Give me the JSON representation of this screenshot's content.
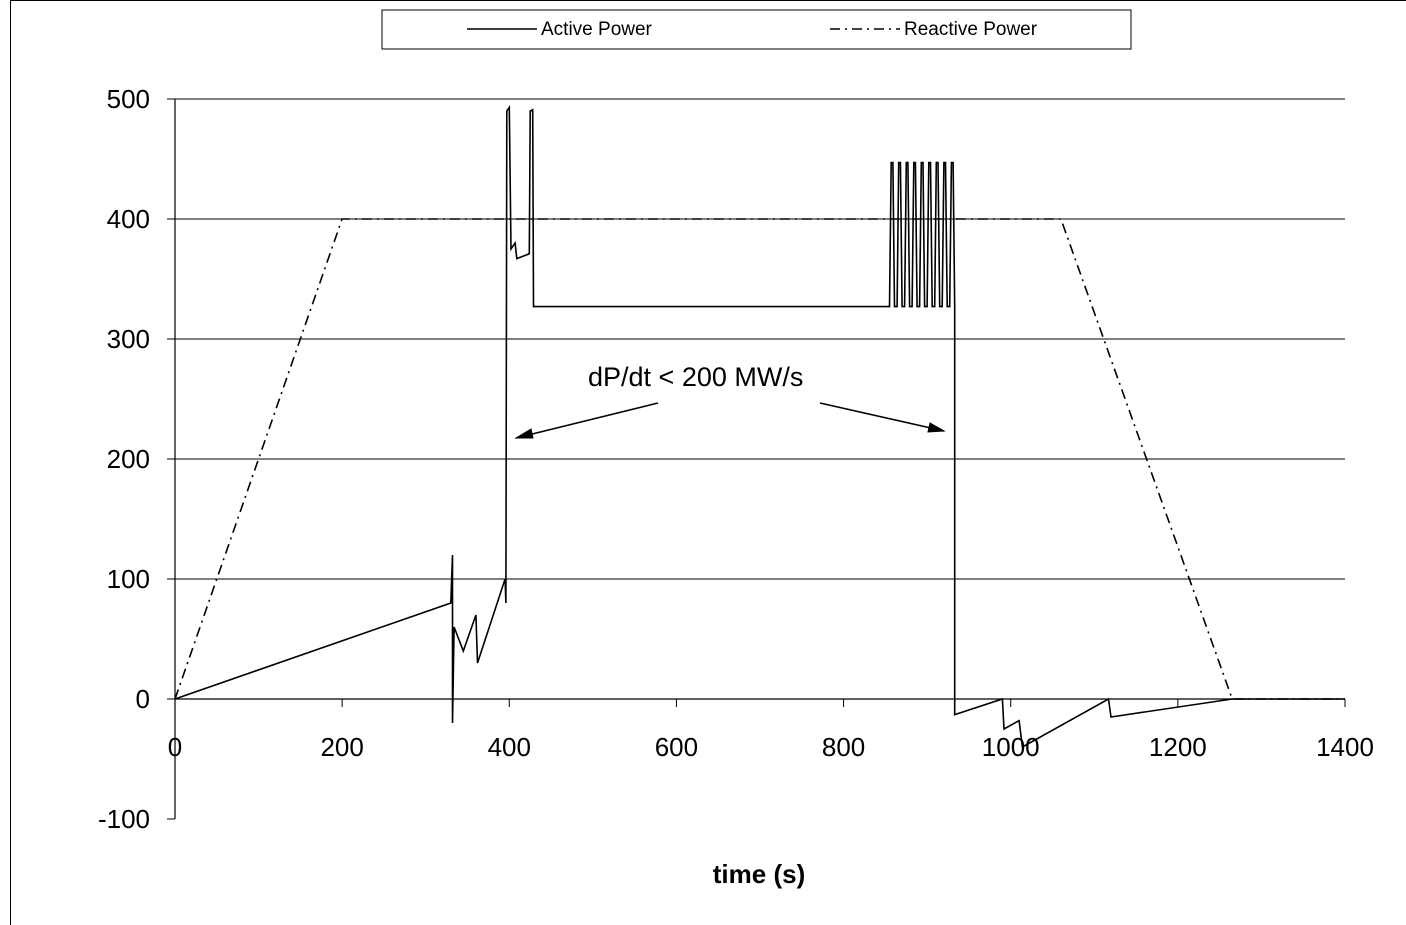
{
  "chart_data": {
    "type": "line",
    "title": "",
    "xlabel": "time (s)",
    "ylabel": "",
    "xlim": [
      0,
      1400
    ],
    "ylim": [
      -100,
      500
    ],
    "x_ticks": [
      "0",
      "200",
      "400",
      "600",
      "800",
      "1000",
      "1200",
      "1400"
    ],
    "y_ticks": [
      "500",
      "400",
      "300",
      "200",
      "100",
      "0",
      "-100"
    ],
    "grid": "horizontal",
    "legend_position": "top",
    "annotation": "dP/dt < 200 MW/s",
    "series": [
      {
        "name": "Active Power",
        "style": "solid",
        "color": "#000000",
        "points": [
          [
            0,
            0
          ],
          [
            330,
            80
          ],
          [
            332,
            120
          ],
          [
            332,
            -20
          ],
          [
            334,
            60
          ],
          [
            345,
            40
          ],
          [
            360,
            70
          ],
          [
            362,
            30
          ],
          [
            395,
            100
          ],
          [
            396,
            80
          ],
          [
            397,
            490
          ],
          [
            400,
            493
          ],
          [
            402,
            375
          ],
          [
            407,
            380
          ],
          [
            409,
            367
          ],
          [
            424,
            371
          ],
          [
            425,
            490
          ],
          [
            428,
            491
          ],
          [
            429,
            327
          ],
          [
            855,
            327
          ],
          [
            857,
            447
          ],
          [
            859,
            447
          ],
          [
            861,
            327
          ],
          [
            864,
            327
          ],
          [
            866,
            447
          ],
          [
            868,
            447
          ],
          [
            870,
            327
          ],
          [
            873,
            327
          ],
          [
            875,
            447
          ],
          [
            877,
            447
          ],
          [
            879,
            327
          ],
          [
            882,
            327
          ],
          [
            884,
            447
          ],
          [
            886,
            447
          ],
          [
            888,
            327
          ],
          [
            891,
            327
          ],
          [
            893,
            447
          ],
          [
            895,
            447
          ],
          [
            897,
            327
          ],
          [
            900,
            327
          ],
          [
            902,
            447
          ],
          [
            904,
            447
          ],
          [
            906,
            327
          ],
          [
            909,
            327
          ],
          [
            911,
            447
          ],
          [
            913,
            447
          ],
          [
            915,
            327
          ],
          [
            918,
            327
          ],
          [
            920,
            447
          ],
          [
            922,
            447
          ],
          [
            924,
            327
          ],
          [
            927,
            327
          ],
          [
            929,
            447
          ],
          [
            931,
            447
          ],
          [
            933,
            327
          ],
          [
            933,
            -13
          ],
          [
            990,
            0
          ],
          [
            992,
            -25
          ],
          [
            1010,
            -18
          ],
          [
            1014,
            -40
          ],
          [
            1117,
            0
          ],
          [
            1120,
            -15
          ],
          [
            1265,
            0
          ],
          [
            1400,
            0
          ]
        ]
      },
      {
        "name": "Reactive Power",
        "style": "dash-dot",
        "color": "#000000",
        "points": [
          [
            0,
            0
          ],
          [
            200,
            400
          ],
          [
            1060,
            400
          ],
          [
            1265,
            0
          ],
          [
            1400,
            0
          ]
        ]
      }
    ]
  }
}
